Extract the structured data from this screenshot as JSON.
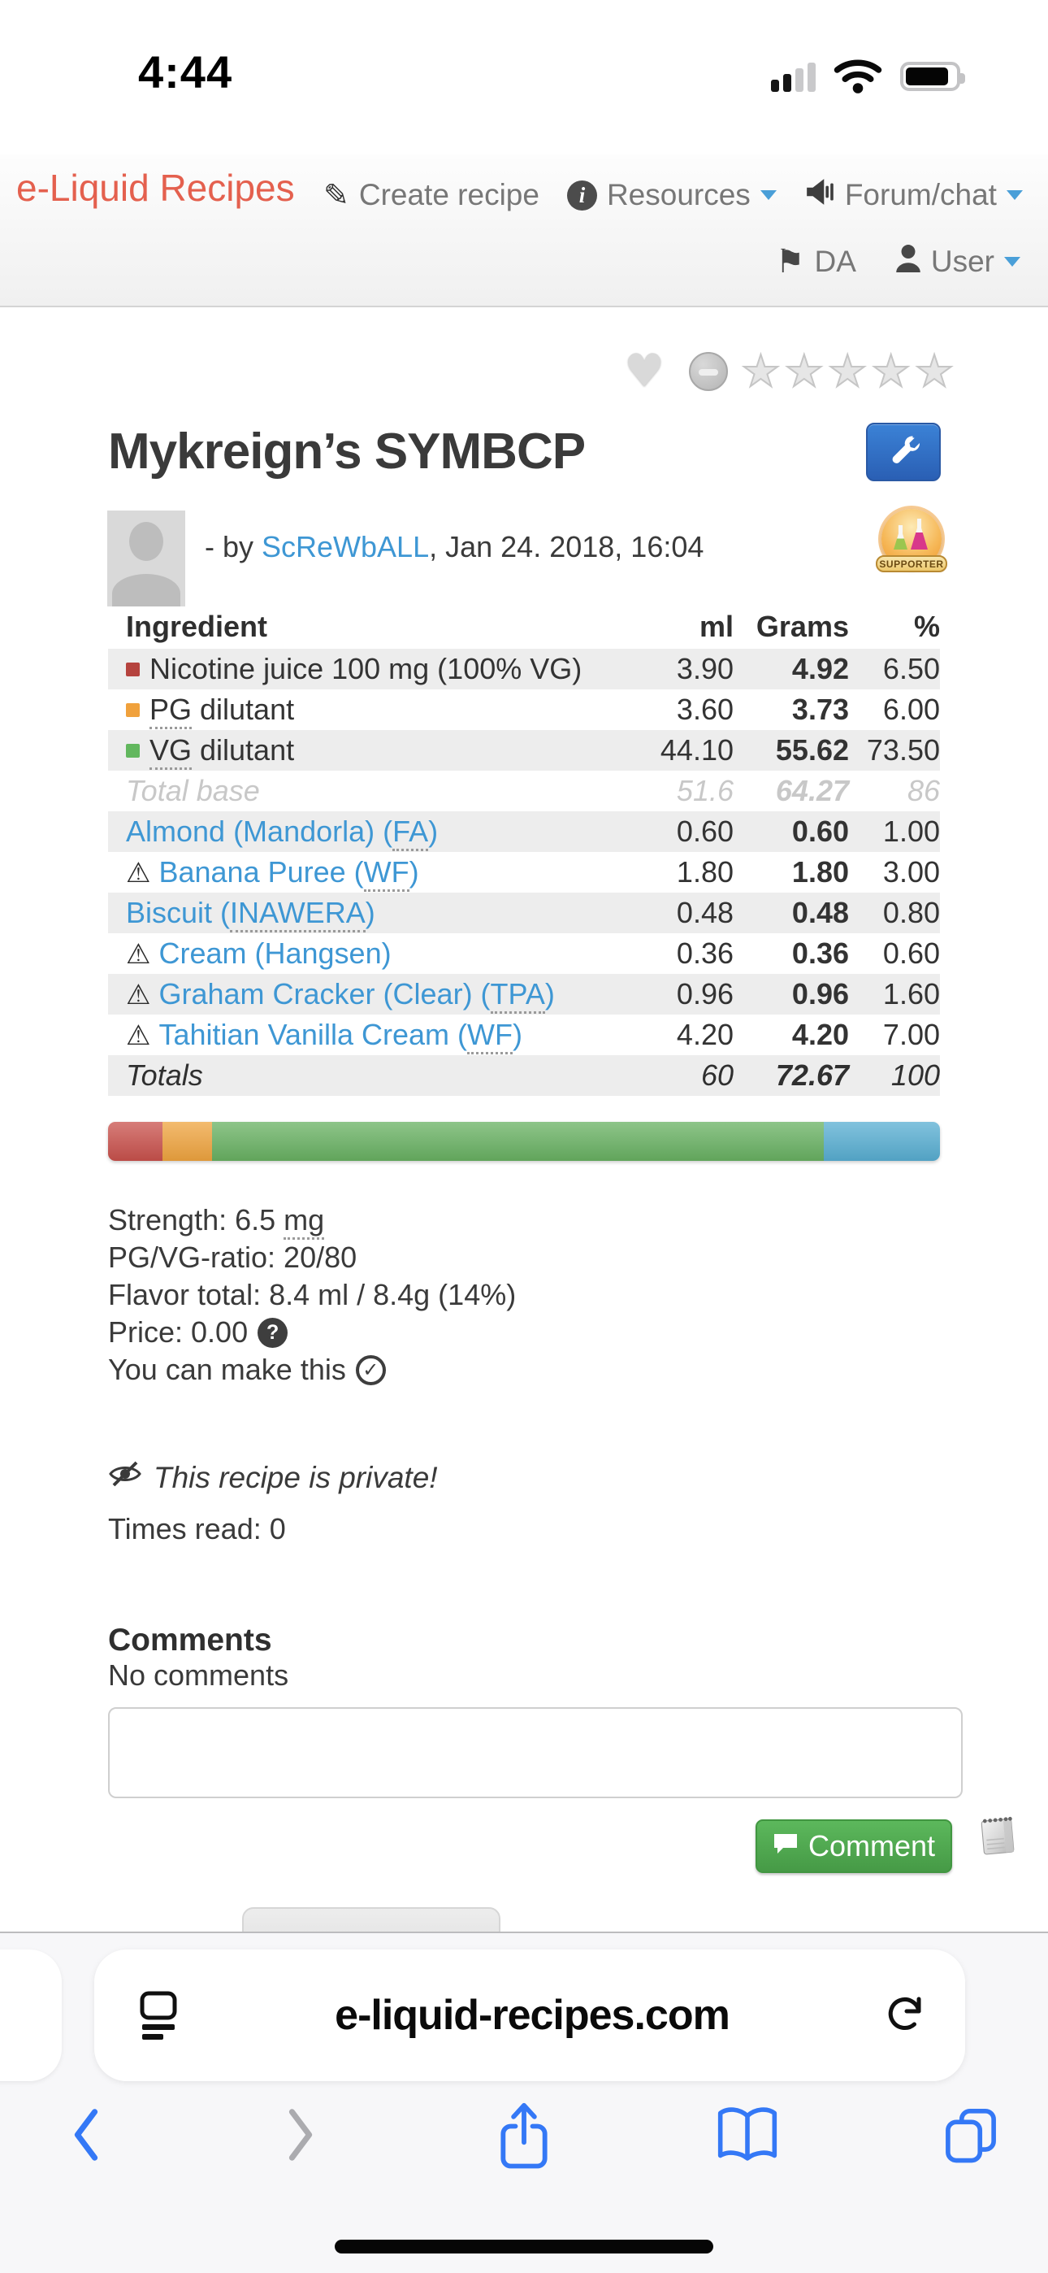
{
  "status_bar": {
    "time": "4:44"
  },
  "navbar": {
    "brand": "e-Liquid Recipes",
    "create_recipe": "Create recipe",
    "resources": "Resources",
    "forum_chat": "Forum/chat",
    "language": "DA",
    "user": "User"
  },
  "recipe": {
    "title": "Mykreign’s SYMBCP",
    "byline_prefix": "- by ",
    "author": "ScReWbALL",
    "byline_suffix": ", Jan 24. 2018, 16:04",
    "supporter_badge": "SUPPORTER"
  },
  "table": {
    "headers": [
      "Ingredient",
      "ml",
      "Grams",
      "%"
    ],
    "rows": [
      {
        "pre": "Nicotine juice 100 mg (100% VG)",
        "ml": "3.90",
        "grams": "4.92",
        "pct": "6.50",
        "bullet": "#b5433e",
        "shade": true
      },
      {
        "pre": "",
        "abbr": "PG",
        "suf": " dilutant",
        "ml": "3.60",
        "grams": "3.73",
        "pct": "6.00",
        "bullet": "#f0a13c"
      },
      {
        "pre": "",
        "abbr": "VG",
        "suf": " dilutant",
        "ml": "44.10",
        "grams": "55.62",
        "pct": "73.50",
        "bullet": "#62b75e",
        "shade": true
      },
      {
        "pre": "Total base",
        "ml": "51.6",
        "grams": "64.27",
        "pct": "86",
        "cls": "muted"
      },
      {
        "pre": "Almond (Mandorla) (",
        "abbr": "FA",
        "suf": ")",
        "ml": "0.60",
        "grams": "0.60",
        "pct": "1.00",
        "link": true,
        "shade": true
      },
      {
        "pre": "Banana Puree (",
        "abbr": "WF",
        "suf": ")",
        "ml": "1.80",
        "grams": "1.80",
        "pct": "3.00",
        "link": true,
        "warn": true
      },
      {
        "pre": "Biscuit (",
        "abbr": "INAWERA",
        "suf": ")",
        "ml": "0.48",
        "grams": "0.48",
        "pct": "0.80",
        "link": true,
        "shade": true
      },
      {
        "pre": "Cream (Hangsen)",
        "ml": "0.36",
        "grams": "0.36",
        "pct": "0.60",
        "link": true,
        "warn": true
      },
      {
        "pre": "Graham Cracker (Clear) (",
        "abbr": "TPA",
        "suf": ")",
        "ml": "0.96",
        "grams": "0.96",
        "pct": "1.60",
        "link": true,
        "warn": true,
        "shade": true
      },
      {
        "pre": "Tahitian Vanilla Cream (",
        "abbr": "WF",
        "suf": ")",
        "ml": "4.20",
        "grams": "4.20",
        "pct": "7.00",
        "link": true,
        "warn": true
      },
      {
        "pre": "Totals",
        "ml": "60",
        "grams": "72.67",
        "pct": "100",
        "cls": "totals",
        "shade": true
      }
    ]
  },
  "composition_bar": {
    "segments": [
      {
        "name": "nicotine",
        "color": "#c9514c",
        "pct": 6.5
      },
      {
        "name": "pg",
        "color": "#efa43f",
        "pct": 6
      },
      {
        "name": "vg",
        "color": "#68b162",
        "pct": 73.5
      },
      {
        "name": "flavor",
        "color": "#58aed2",
        "pct": 14
      }
    ]
  },
  "details": {
    "lines": [
      {
        "pre": "Strength: 6.5 ",
        "abbr": "mg"
      },
      {
        "pre": "PG/VG-ratio: 20/80"
      },
      {
        "pre": "Flavor total: 8.4 ml / 8.4g (14%)"
      },
      {
        "pre": "Price: 0.00",
        "icon": "question"
      },
      {
        "pre": "You can make this",
        "icon": "check"
      }
    ]
  },
  "privacy": {
    "notice": "This recipe is private!"
  },
  "stats": {
    "times_read": "Times read: 0"
  },
  "comments": {
    "heading": "Comments",
    "empty": "No comments",
    "button_label": "Comment"
  },
  "browser": {
    "url": "e-liquid-recipes.com"
  }
}
